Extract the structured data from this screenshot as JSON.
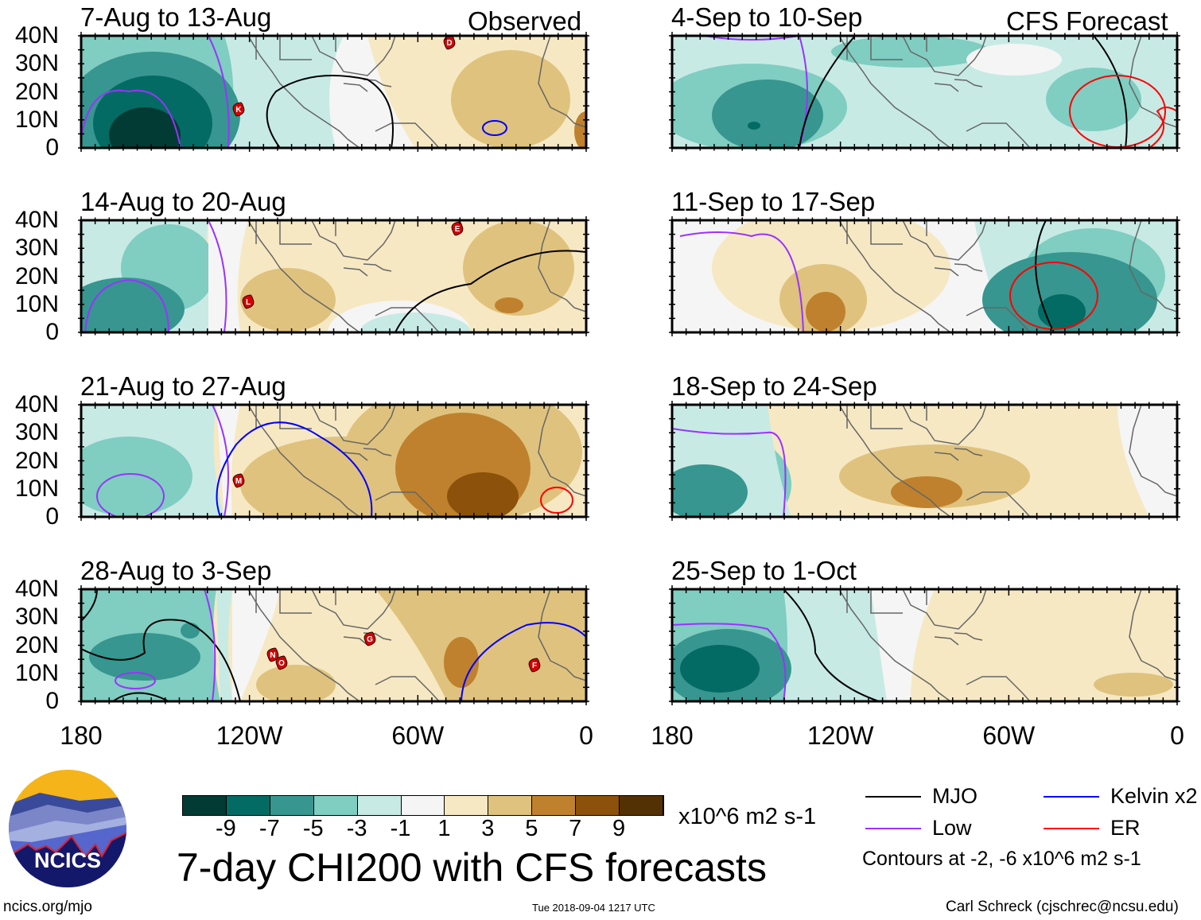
{
  "header": {
    "left_label": "Observed",
    "right_label": "CFS Forecast"
  },
  "panels": [
    {
      "title": "7-Aug to 13-Aug",
      "storms": [
        "D",
        "K"
      ]
    },
    {
      "title": "14-Aug to 20-Aug",
      "storms": [
        "E",
        "L"
      ]
    },
    {
      "title": "21-Aug to 27-Aug",
      "storms": [
        "M"
      ]
    },
    {
      "title": "28-Aug to 3-Sep",
      "storms": [
        "G",
        "N",
        "O",
        "F"
      ]
    },
    {
      "title": "4-Sep to 10-Sep",
      "storms": []
    },
    {
      "title": "11-Sep to 17-Sep",
      "storms": []
    },
    {
      "title": "18-Sep to 24-Sep",
      "storms": []
    },
    {
      "title": "25-Sep to 1-Oct",
      "storms": []
    }
  ],
  "lat_labels": [
    "40N",
    "30N",
    "20N",
    "10N",
    "0"
  ],
  "lon_labels": [
    "180",
    "120W",
    "60W",
    "0"
  ],
  "colorbar": {
    "colors": [
      "#013b33",
      "#036b63",
      "#37968f",
      "#80cdc1",
      "#c7eae5",
      "#f5f5f5",
      "#f6e8c3",
      "#dfc27d",
      "#bf812d",
      "#8c510a",
      "#543005"
    ],
    "ticks": [
      "-9",
      "-7",
      "-5",
      "-3",
      "-1",
      "1",
      "3",
      "5",
      "7",
      "9"
    ],
    "units": "x10^6 m2 s-1"
  },
  "legend": {
    "items": [
      {
        "label": "MJO",
        "color": "#000000"
      },
      {
        "label": "Kelvin x2",
        "color": "#0000ff"
      },
      {
        "label": "Low",
        "color": "#9933ff"
      },
      {
        "label": "ER",
        "color": "#ff0000"
      }
    ],
    "note": "Contours at -2, -6 x10^6 m2 s-1"
  },
  "footer": {
    "title": "7-day CHI200 with CFS forecasts",
    "logo_text": "NCICS",
    "url": "ncics.org/mjo",
    "timestamp": "Tue 2018-09-04 1217 UTC",
    "credit": "Carl Schreck (cjschrec@ncsu.edu)"
  }
}
